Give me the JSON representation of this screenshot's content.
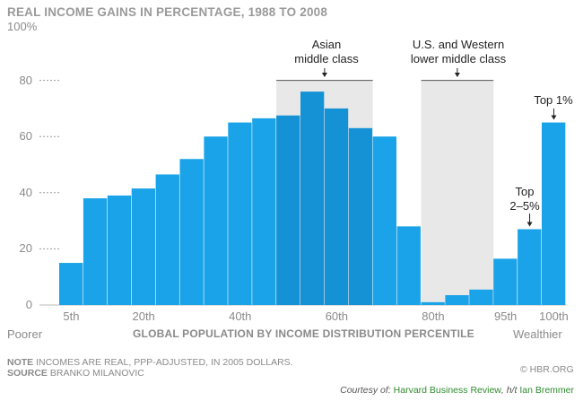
{
  "title": "REAL INCOME GAINS IN PERCENTAGE, 1988 TO 2008",
  "y_top_label": "100%",
  "annotations": {
    "asian": [
      "Asian",
      "middle class"
    ],
    "western": [
      "U.S. and Western",
      "lower middle class"
    ],
    "top25": [
      "Top",
      "2–5%"
    ],
    "top1": "Top 1%"
  },
  "x_axis": {
    "poorer": "Poorer",
    "wealthier": "Wealthier",
    "title": "GLOBAL POPULATION BY INCOME DISTRIBUTION PERCENTILE"
  },
  "footer": {
    "note_label": "NOTE",
    "note_text": "INCOMES ARE REAL, PPP-ADJUSTED, IN 2005 DOLLARS.",
    "source_label": "SOURCE",
    "source_text": "BRANKO MILANOVIC",
    "brand": "© HBR.ORG"
  },
  "credit": {
    "prefix": "Courtesy of:",
    "link1": "Harvard Business Review",
    "mid": ", h/t",
    "link2": "Ian Bremmer"
  },
  "colors": {
    "bar": "#1aa3e8",
    "bar_highlight": "#1592d6",
    "band": "#e8e8e8",
    "grid": "#9a9a9a"
  },
  "chart_data": {
    "type": "bar",
    "title": "REAL INCOME GAINS IN PERCENTAGE, 1988 TO 2008",
    "xlabel": "GLOBAL POPULATION BY INCOME DISTRIBUTION PERCENTILE",
    "ylabel": "",
    "ylim": [
      0,
      100
    ],
    "yticks": [
      0,
      20,
      40,
      60,
      80
    ],
    "grid": true,
    "x_tick_labels": [
      "5th",
      "20th",
      "40th",
      "60th",
      "80th",
      "95th",
      "100th"
    ],
    "categories": [
      5,
      10,
      15,
      20,
      25,
      30,
      35,
      40,
      45,
      50,
      55,
      60,
      65,
      70,
      75,
      80,
      85,
      90,
      95,
      99,
      100
    ],
    "values": [
      15,
      38,
      39,
      41.5,
      46.5,
      52,
      60,
      65,
      66.5,
      67.5,
      76,
      70,
      63,
      60,
      28,
      1,
      3.5,
      5.5,
      16.5,
      27,
      65
    ],
    "highlighted": [
      false,
      false,
      false,
      false,
      false,
      false,
      false,
      false,
      false,
      true,
      true,
      true,
      true,
      false,
      false,
      false,
      false,
      false,
      false,
      false,
      false
    ],
    "bands": [
      {
        "from_percentile": 50,
        "to_percentile": 65,
        "label": "Asian middle class"
      },
      {
        "from_percentile": 80,
        "to_percentile": 90,
        "label": "U.S. and Western lower middle class"
      }
    ]
  }
}
